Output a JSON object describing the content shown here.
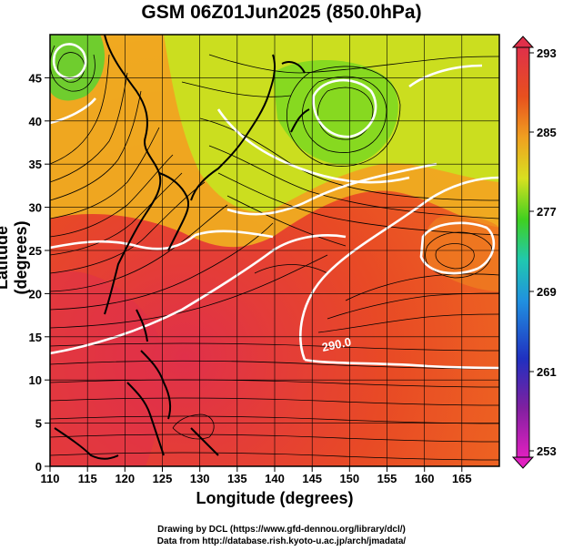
{
  "title": "GSM 06Z01Jun2025 (850.0hPa)",
  "x_axis": {
    "label": "Longitude (degrees)",
    "ticks": [
      "110",
      "115",
      "120",
      "125",
      "130",
      "135",
      "140",
      "145",
      "150",
      "155",
      "160",
      "165"
    ],
    "range": [
      110,
      170
    ]
  },
  "y_axis": {
    "label": "Latitude  (degrees)",
    "ticks": [
      "0",
      "5",
      "10",
      "15",
      "20",
      "25",
      "30",
      "35",
      "40",
      "45"
    ],
    "range": [
      0,
      50
    ]
  },
  "colorbar": {
    "labels": [
      "293",
      "285",
      "277",
      "269",
      "261",
      "253"
    ],
    "colors": [
      "#e0204a",
      "#e84a20",
      "#f0a020",
      "#d8e020",
      "#40d020",
      "#20c8b0",
      "#2090e0",
      "#2030c0",
      "#8020a0",
      "#e020c0"
    ]
  },
  "contour_label": "290.0",
  "credits": {
    "line1": "Drawing by DCL (https://www.gfd-dennou.org/library/dcl/)",
    "line2": "Data from http://database.rish.kyoto-u.ac.jp/arch/jmadata/"
  }
}
